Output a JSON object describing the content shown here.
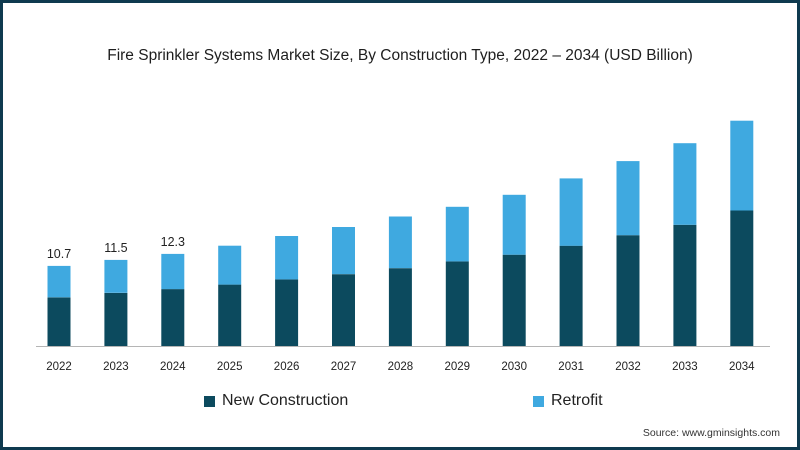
{
  "chart_data": {
    "type": "bar",
    "stacked": true,
    "title": "Fire Sprinkler Systems Market Size, By Construction Type, 2022 – 2034 (USD Billion)",
    "categories": [
      "2022",
      "2023",
      "2024",
      "2025",
      "2026",
      "2027",
      "2028",
      "2029",
      "2030",
      "2031",
      "2032",
      "2033",
      "2034"
    ],
    "series": [
      {
        "name": "New Construction",
        "color": "#0c4a5e",
        "values": [
          6.5,
          7.1,
          7.6,
          8.2,
          8.9,
          9.6,
          10.4,
          11.3,
          12.2,
          13.4,
          14.8,
          16.2,
          18.1
        ]
      },
      {
        "name": "Retrofit",
        "color": "#3fa9e0",
        "values": [
          4.2,
          4.4,
          4.7,
          5.2,
          5.8,
          6.3,
          6.9,
          7.3,
          8.0,
          9.0,
          9.9,
          10.9,
          12.0
        ]
      }
    ],
    "data_labels": [
      "10.7",
      "11.5",
      "12.3"
    ],
    "ylim": [
      0,
      31
    ],
    "xlabel": "",
    "ylabel": "",
    "legend_position": "bottom"
  },
  "legend": {
    "items": [
      "New Construction",
      "Retrofit"
    ]
  },
  "source": "Source: www.gminsights.com"
}
